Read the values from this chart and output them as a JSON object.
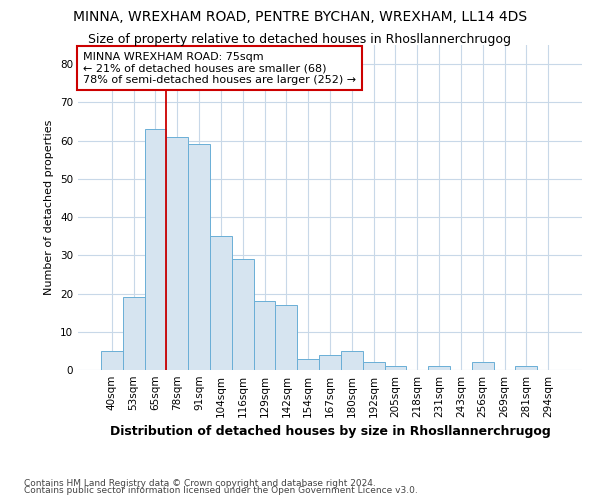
{
  "title1": "MINNA, WREXHAM ROAD, PENTRE BYCHAN, WREXHAM, LL14 4DS",
  "title2": "Size of property relative to detached houses in Rhosllannerchrugog",
  "xlabel": "Distribution of detached houses by size in Rhosllannerchrugog",
  "ylabel": "Number of detached properties",
  "footer1": "Contains HM Land Registry data © Crown copyright and database right 2024.",
  "footer2": "Contains public sector information licensed under the Open Government Licence v3.0.",
  "annotation_title": "MINNA WREXHAM ROAD: 75sqm",
  "annotation_line1": "← 21% of detached houses are smaller (68)",
  "annotation_line2": "78% of semi-detached houses are larger (252) →",
  "bar_color": "#d6e4f0",
  "bar_edge_color": "#6aaed6",
  "vline_color": "#cc0000",
  "vline_x_idx": 3,
  "categories": [
    "40sqm",
    "53sqm",
    "65sqm",
    "78sqm",
    "91sqm",
    "104sqm",
    "116sqm",
    "129sqm",
    "142sqm",
    "154sqm",
    "167sqm",
    "180sqm",
    "192sqm",
    "205sqm",
    "218sqm",
    "231sqm",
    "243sqm",
    "256sqm",
    "269sqm",
    "281sqm",
    "294sqm"
  ],
  "values": [
    5,
    19,
    63,
    61,
    59,
    35,
    29,
    18,
    17,
    3,
    4,
    5,
    2,
    1,
    0,
    1,
    0,
    2,
    0,
    1,
    0
  ],
  "ylim": [
    0,
    85
  ],
  "yticks": [
    0,
    10,
    20,
    30,
    40,
    50,
    60,
    70,
    80
  ],
  "background_color": "#ffffff",
  "grid_color": "#c8d8e8",
  "title1_fontsize": 10,
  "title2_fontsize": 9,
  "xlabel_fontsize": 9,
  "ylabel_fontsize": 8,
  "tick_fontsize": 7.5,
  "footer_fontsize": 6.5,
  "annot_fontsize": 8
}
